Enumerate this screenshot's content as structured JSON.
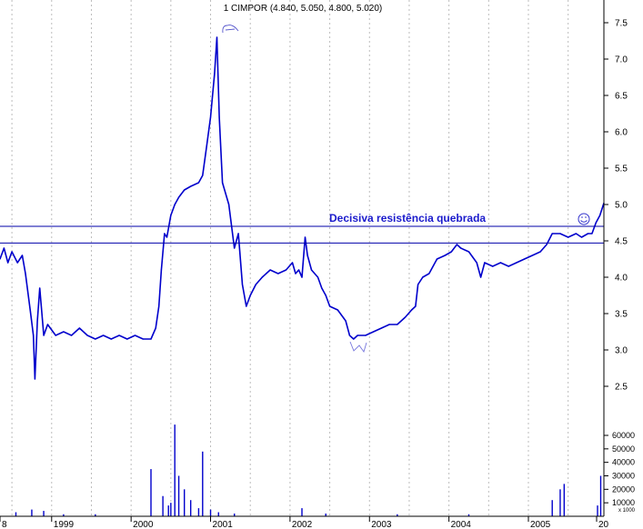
{
  "chart_data": {
    "type": "line",
    "title": "1 CIMPOR (4.840, 5.050, 4.800, 5.020)",
    "price_axis": {
      "ylim": [
        2.1,
        7.8
      ],
      "ticks": [
        "2.5",
        "3.0",
        "3.5",
        "4.0",
        "4.5",
        "5.0",
        "5.5",
        "6.0",
        "6.5",
        "7.0",
        "7.5"
      ]
    },
    "volume_axis": {
      "ylim": [
        0,
        65000
      ],
      "ticks": [
        "10000",
        "20000",
        "30000",
        "40000",
        "50000",
        "60000"
      ],
      "unit_label": "x 1000"
    },
    "x_axis": {
      "range": [
        1998.4,
        2006.0
      ],
      "ticks": [
        {
          "label": "8",
          "x": 1998.0
        },
        {
          "label": "1999",
          "x": 1999.0
        },
        {
          "label": "2000",
          "x": 2000.0
        },
        {
          "label": "2001",
          "x": 2001.0
        },
        {
          "label": "2002",
          "x": 2002.0
        },
        {
          "label": "2003",
          "x": 2003.0
        },
        {
          "label": "2004",
          "x": 2004.0
        },
        {
          "label": "2005",
          "x": 2005.0
        },
        {
          "label": "20",
          "x": 2006.0
        }
      ],
      "gridlines": [
        1998.55,
        1999.05,
        1999.55,
        2000.05,
        2000.55,
        2001.05,
        2001.55,
        2002.05,
        2002.55,
        2003.05,
        2003.55,
        2004.05,
        2004.55,
        2005.05,
        2005.55
      ]
    },
    "price_series": [
      [
        1998.4,
        4.25
      ],
      [
        1998.45,
        4.4
      ],
      [
        1998.5,
        4.2
      ],
      [
        1998.55,
        4.35
      ],
      [
        1998.62,
        4.2
      ],
      [
        1998.68,
        4.3
      ],
      [
        1998.72,
        4.05
      ],
      [
        1998.78,
        3.55
      ],
      [
        1998.82,
        3.2
      ],
      [
        1998.84,
        2.6
      ],
      [
        1998.87,
        3.4
      ],
      [
        1998.9,
        3.85
      ],
      [
        1998.95,
        3.2
      ],
      [
        1999.0,
        3.35
      ],
      [
        1999.1,
        3.2
      ],
      [
        1999.2,
        3.25
      ],
      [
        1999.3,
        3.2
      ],
      [
        1999.4,
        3.3
      ],
      [
        1999.5,
        3.2
      ],
      [
        1999.6,
        3.15
      ],
      [
        1999.7,
        3.2
      ],
      [
        1999.8,
        3.15
      ],
      [
        1999.9,
        3.2
      ],
      [
        2000.0,
        3.15
      ],
      [
        2000.1,
        3.2
      ],
      [
        2000.2,
        3.15
      ],
      [
        2000.3,
        3.15
      ],
      [
        2000.36,
        3.3
      ],
      [
        2000.4,
        3.6
      ],
      [
        2000.43,
        4.1
      ],
      [
        2000.47,
        4.6
      ],
      [
        2000.5,
        4.55
      ],
      [
        2000.55,
        4.85
      ],
      [
        2000.6,
        5.0
      ],
      [
        2000.65,
        5.1
      ],
      [
        2000.72,
        5.2
      ],
      [
        2000.8,
        5.25
      ],
      [
        2000.9,
        5.3
      ],
      [
        2000.95,
        5.4
      ],
      [
        2001.0,
        5.8
      ],
      [
        2001.05,
        6.2
      ],
      [
        2001.1,
        6.8
      ],
      [
        2001.13,
        7.3
      ],
      [
        2001.16,
        6.2
      ],
      [
        2001.2,
        5.3
      ],
      [
        2001.28,
        5.0
      ],
      [
        2001.35,
        4.4
      ],
      [
        2001.4,
        4.6
      ],
      [
        2001.45,
        3.9
      ],
      [
        2001.5,
        3.6
      ],
      [
        2001.55,
        3.75
      ],
      [
        2001.62,
        3.9
      ],
      [
        2001.7,
        4.0
      ],
      [
        2001.8,
        4.1
      ],
      [
        2001.9,
        4.05
      ],
      [
        2002.0,
        4.1
      ],
      [
        2002.08,
        4.2
      ],
      [
        2002.12,
        4.05
      ],
      [
        2002.16,
        4.1
      ],
      [
        2002.2,
        4.0
      ],
      [
        2002.24,
        4.55
      ],
      [
        2002.27,
        4.3
      ],
      [
        2002.32,
        4.1
      ],
      [
        2002.4,
        4.0
      ],
      [
        2002.45,
        3.85
      ],
      [
        2002.5,
        3.75
      ],
      [
        2002.55,
        3.6
      ],
      [
        2002.65,
        3.55
      ],
      [
        2002.75,
        3.4
      ],
      [
        2002.8,
        3.2
      ],
      [
        2002.85,
        3.15
      ],
      [
        2002.9,
        3.2
      ],
      [
        2003.0,
        3.2
      ],
      [
        2003.1,
        3.25
      ],
      [
        2003.2,
        3.3
      ],
      [
        2003.3,
        3.35
      ],
      [
        2003.4,
        3.35
      ],
      [
        2003.5,
        3.45
      ],
      [
        2003.58,
        3.55
      ],
      [
        2003.63,
        3.6
      ],
      [
        2003.66,
        3.9
      ],
      [
        2003.72,
        4.0
      ],
      [
        2003.8,
        4.05
      ],
      [
        2003.9,
        4.25
      ],
      [
        2004.0,
        4.3
      ],
      [
        2004.08,
        4.35
      ],
      [
        2004.15,
        4.45
      ],
      [
        2004.2,
        4.4
      ],
      [
        2004.3,
        4.35
      ],
      [
        2004.4,
        4.2
      ],
      [
        2004.45,
        4.0
      ],
      [
        2004.5,
        4.2
      ],
      [
        2004.6,
        4.15
      ],
      [
        2004.7,
        4.2
      ],
      [
        2004.8,
        4.15
      ],
      [
        2004.9,
        4.2
      ],
      [
        2005.0,
        4.25
      ],
      [
        2005.1,
        4.3
      ],
      [
        2005.2,
        4.35
      ],
      [
        2005.28,
        4.45
      ],
      [
        2005.35,
        4.6
      ],
      [
        2005.45,
        4.6
      ],
      [
        2005.55,
        4.55
      ],
      [
        2005.65,
        4.6
      ],
      [
        2005.72,
        4.55
      ],
      [
        2005.8,
        4.6
      ],
      [
        2005.85,
        4.6
      ],
      [
        2005.9,
        4.75
      ],
      [
        2005.95,
        4.85
      ],
      [
        2006.0,
        5.02
      ]
    ],
    "volume_bars": [
      [
        1998.6,
        3000
      ],
      [
        1998.8,
        5000
      ],
      [
        1998.95,
        4000
      ],
      [
        1999.2,
        1500
      ],
      [
        1999.6,
        1500
      ],
      [
        2000.3,
        35000
      ],
      [
        2000.45,
        15000
      ],
      [
        2000.52,
        8000
      ],
      [
        2000.55,
        10000
      ],
      [
        2000.6,
        68000
      ],
      [
        2000.65,
        30000
      ],
      [
        2000.72,
        20000
      ],
      [
        2000.8,
        12000
      ],
      [
        2000.9,
        6000
      ],
      [
        2000.95,
        48000
      ],
      [
        2001.05,
        5000
      ],
      [
        2001.15,
        3000
      ],
      [
        2001.35,
        2000
      ],
      [
        2002.2,
        6000
      ],
      [
        2002.5,
        2000
      ],
      [
        2003.4,
        1500
      ],
      [
        2004.3,
        1500
      ],
      [
        2005.35,
        12000
      ],
      [
        2005.45,
        20000
      ],
      [
        2005.5,
        24000
      ],
      [
        2005.92,
        8000
      ],
      [
        2005.96,
        30000
      ]
    ],
    "resistance_lines": [
      4.7,
      4.47
    ],
    "annotation": "Decisiva resistência quebrada",
    "colors": {
      "series": "#0000cc",
      "lines": "#0000aa",
      "annotation": "#1a1acc",
      "grid": "#bdbdbd"
    }
  }
}
